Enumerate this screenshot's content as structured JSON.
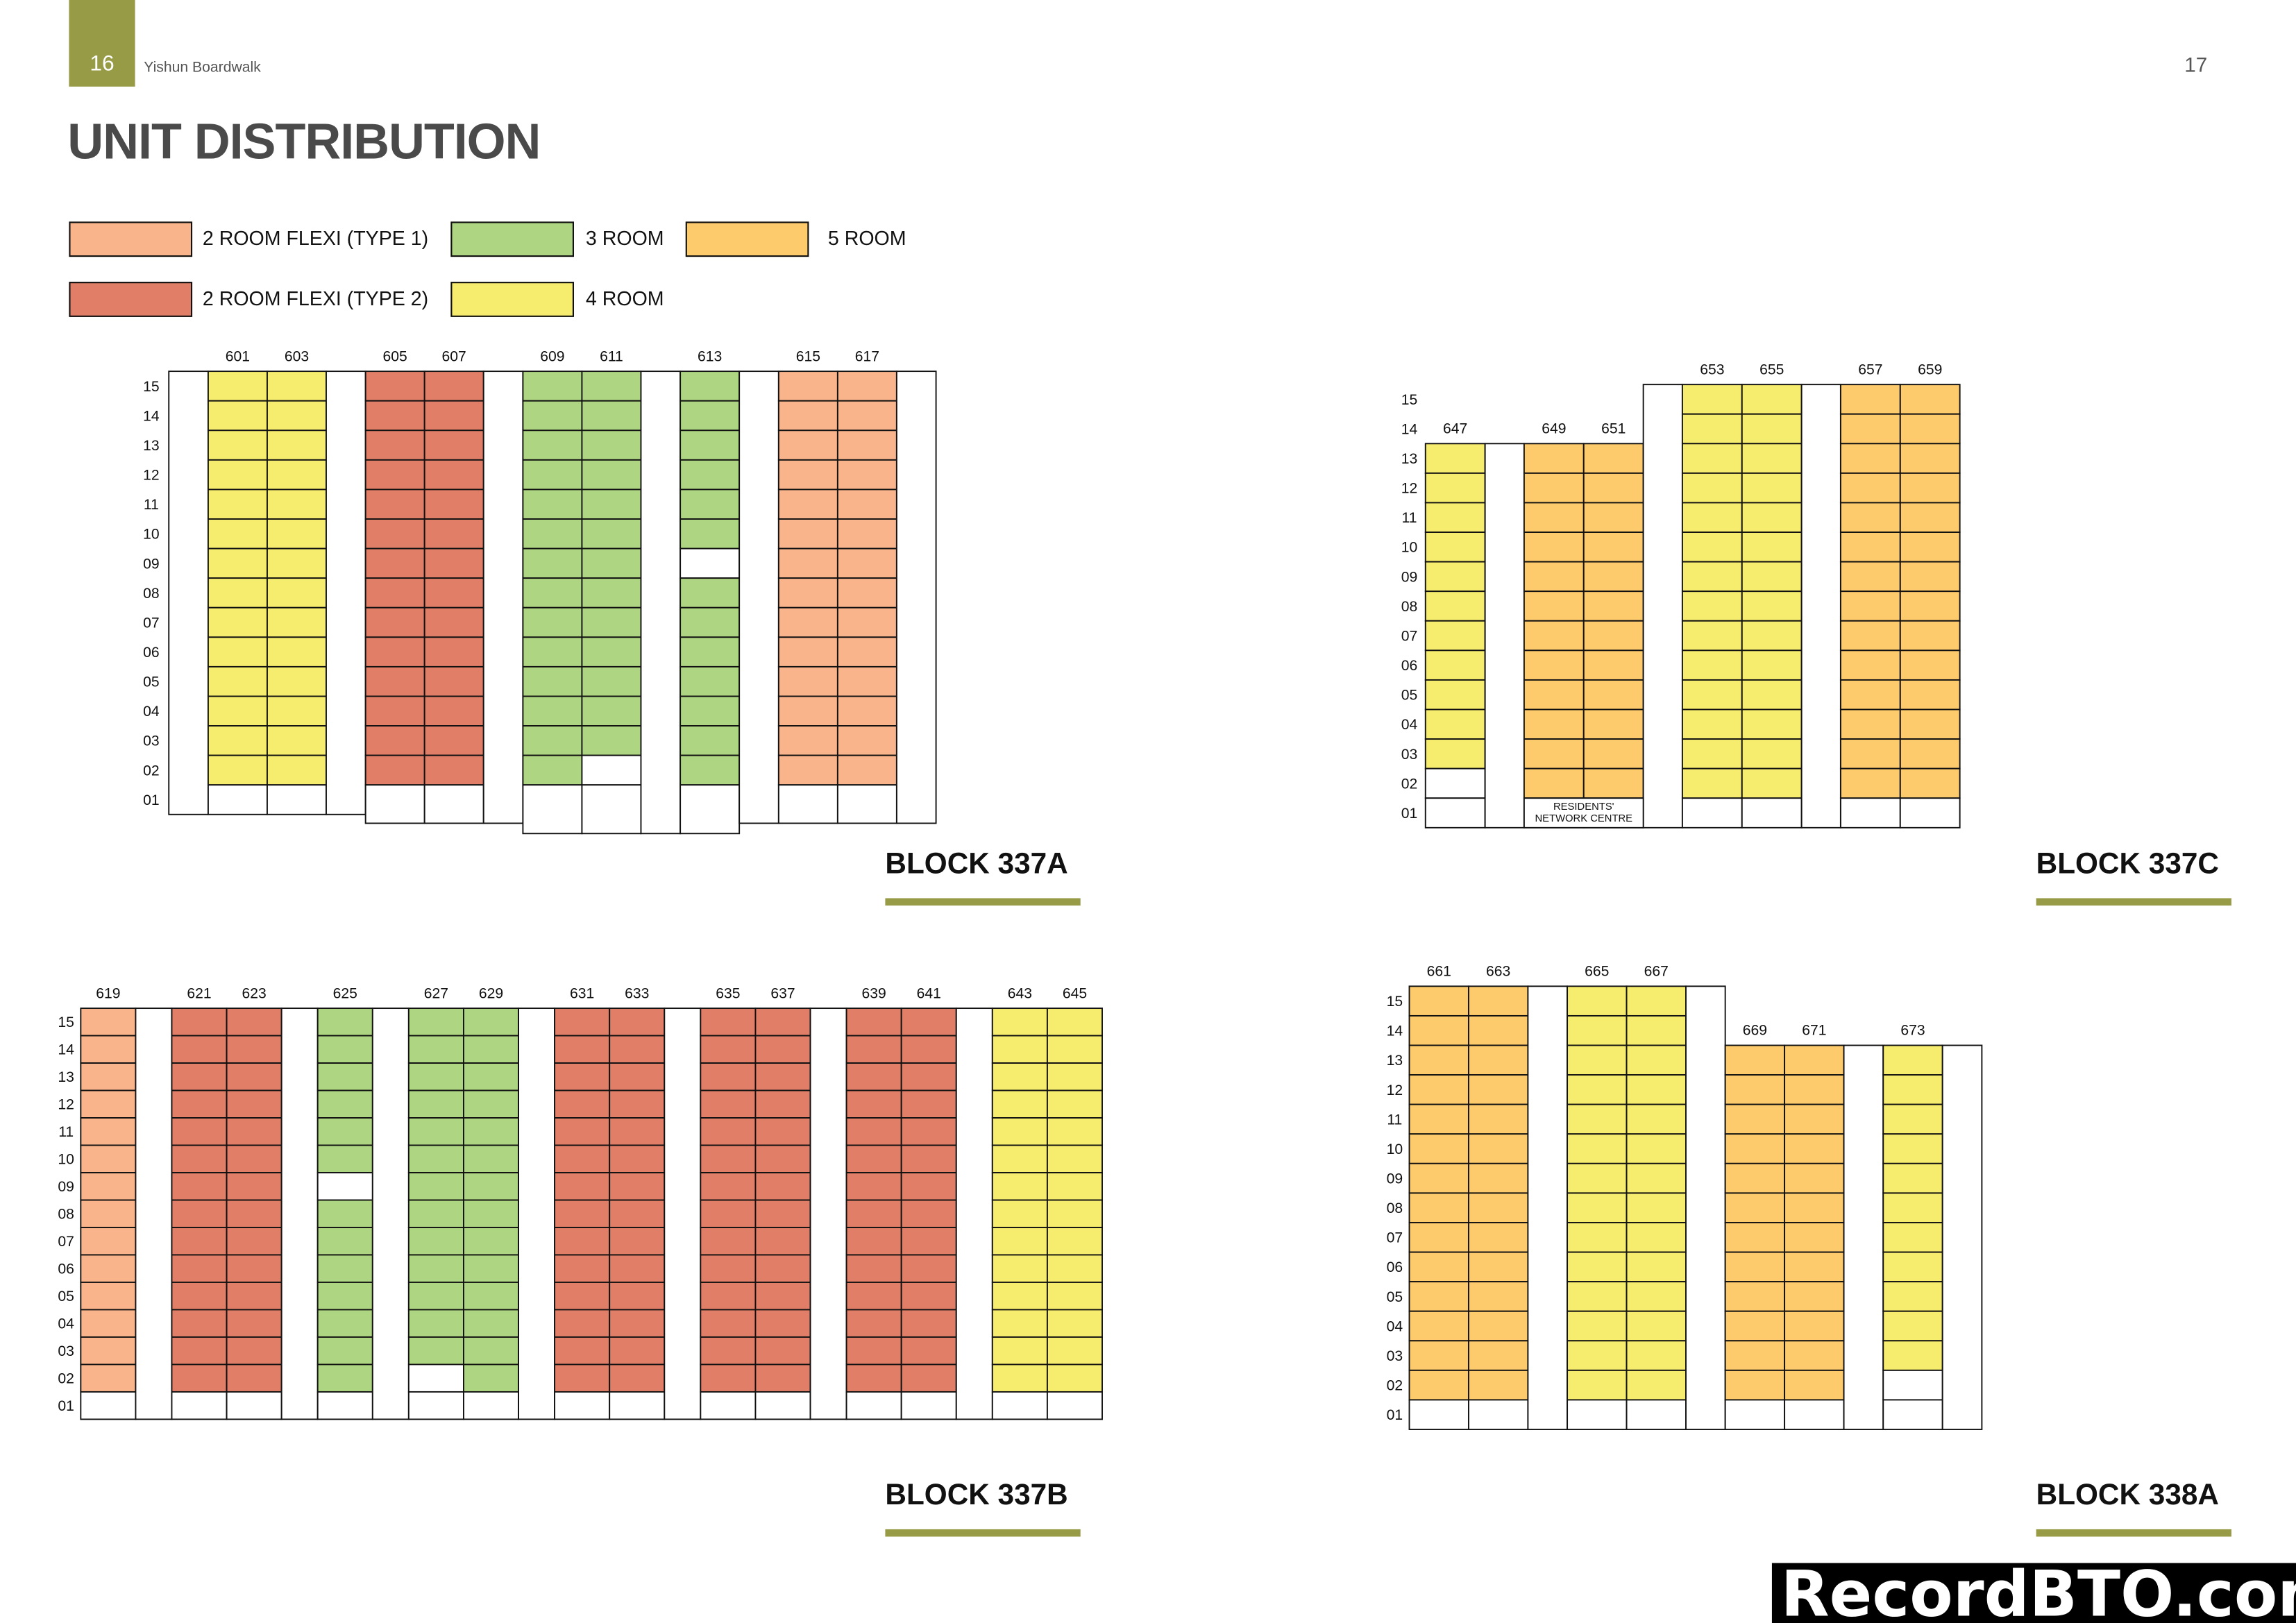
{
  "header": {
    "left_page_number": "16",
    "project_name": "Yishun Boardwalk",
    "right_page_number": "17",
    "title": "UNIT DISTRIBUTION",
    "accent_color": "#979b45"
  },
  "legend": [
    {
      "key": "flexi1",
      "label": "2 ROOM FLEXI (TYPE 1)",
      "color": "#f9b48c"
    },
    {
      "key": "room3",
      "label": "3 ROOM",
      "color": "#aed581"
    },
    {
      "key": "room5",
      "label": "5 ROOM",
      "color": "#fdca6c"
    },
    {
      "key": "flexi2",
      "label": "2 ROOM FLEXI (TYPE 2)",
      "color": "#e07e68"
    },
    {
      "key": "room4",
      "label": "4 ROOM",
      "color": "#f6ed6e"
    }
  ],
  "blank_color": "#ffffff",
  "floors": [
    "15",
    "14",
    "13",
    "12",
    "11",
    "10",
    "09",
    "08",
    "07",
    "06",
    "05",
    "04",
    "03",
    "02",
    "01"
  ],
  "blocks": [
    {
      "name": "BLOCK 337A",
      "columns": [
        {
          "unit": null,
          "type": "void",
          "top_floor": 15
        },
        {
          "unit": "601",
          "type": "room4",
          "top_floor": 15,
          "blank_floors": [
            "01"
          ]
        },
        {
          "unit": "603",
          "type": "room4",
          "top_floor": 15,
          "blank_floors": [
            "01"
          ]
        },
        {
          "unit": null,
          "type": "void",
          "top_floor": 15
        },
        {
          "unit": "605",
          "type": "flexi2",
          "top_floor": 15,
          "blank_floors": [
            "01"
          ]
        },
        {
          "unit": "607",
          "type": "flexi2",
          "top_floor": 15,
          "blank_floors": [
            "01"
          ]
        },
        {
          "unit": null,
          "type": "void",
          "top_floor": 15
        },
        {
          "unit": "609",
          "type": "room3",
          "top_floor": 15,
          "blank_floors": [
            "01"
          ]
        },
        {
          "unit": "611",
          "type": "room3",
          "top_floor": 15,
          "blank_floors": [
            "02",
            "01"
          ]
        },
        {
          "unit": null,
          "type": "void",
          "top_floor": 15
        },
        {
          "unit": "613",
          "type": "room3",
          "top_floor": 15,
          "blank_floors": [
            "09",
            "01"
          ]
        },
        {
          "unit": null,
          "type": "void",
          "top_floor": 15
        },
        {
          "unit": "615",
          "type": "flexi1",
          "top_floor": 15,
          "blank_floors": [
            "01"
          ]
        },
        {
          "unit": "617",
          "type": "flexi1",
          "top_floor": 15,
          "blank_floors": [
            "01"
          ]
        },
        {
          "unit": null,
          "type": "void",
          "top_floor": 15
        }
      ]
    },
    {
      "name": "BLOCK 337C",
      "columns": [
        {
          "unit": "647",
          "type": "room4",
          "top_floor": 13,
          "blank_floors": [
            "02",
            "01"
          ]
        },
        {
          "unit": null,
          "type": "void",
          "top_floor": 13
        },
        {
          "unit": "649",
          "type": "room5",
          "top_floor": 13,
          "blank_floors": [
            "01"
          ]
        },
        {
          "unit": "651",
          "type": "room5",
          "top_floor": 13,
          "blank_floors": [
            "01"
          ]
        },
        {
          "unit": null,
          "type": "void",
          "top_floor": 15
        },
        {
          "unit": "653",
          "type": "room4",
          "top_floor": 15,
          "blank_floors": [
            "01"
          ]
        },
        {
          "unit": "655",
          "type": "room4",
          "top_floor": 15,
          "blank_floors": [
            "01"
          ]
        },
        {
          "unit": null,
          "type": "void",
          "top_floor": 15
        },
        {
          "unit": "657",
          "type": "room5",
          "top_floor": 15,
          "blank_floors": [
            "01"
          ]
        },
        {
          "unit": "659",
          "type": "room5",
          "top_floor": 15,
          "blank_floors": [
            "01"
          ]
        }
      ],
      "merged_cells": [
        {
          "units": [
            "649",
            "651"
          ],
          "floor": "01",
          "label_lines": [
            "RESIDENTS'",
            "NETWORK CENTRE"
          ]
        }
      ]
    },
    {
      "name": "BLOCK 337B",
      "columns": [
        {
          "unit": "619",
          "type": "flexi1",
          "top_floor": 15,
          "blank_floors": [
            "01"
          ]
        },
        {
          "unit": null,
          "type": "void",
          "top_floor": 15
        },
        {
          "unit": "621",
          "type": "flexi2",
          "top_floor": 15,
          "blank_floors": [
            "01"
          ]
        },
        {
          "unit": "623",
          "type": "flexi2",
          "top_floor": 15,
          "blank_floors": [
            "01"
          ]
        },
        {
          "unit": null,
          "type": "void",
          "top_floor": 15
        },
        {
          "unit": "625",
          "type": "room3",
          "top_floor": 15,
          "blank_floors": [
            "09",
            "01"
          ]
        },
        {
          "unit": null,
          "type": "void",
          "top_floor": 15
        },
        {
          "unit": "627",
          "type": "room3",
          "top_floor": 15,
          "blank_floors": [
            "02",
            "01"
          ]
        },
        {
          "unit": "629",
          "type": "room3",
          "top_floor": 15,
          "blank_floors": [
            "01"
          ]
        },
        {
          "unit": null,
          "type": "void",
          "top_floor": 15
        },
        {
          "unit": "631",
          "type": "flexi2",
          "top_floor": 15,
          "blank_floors": [
            "01"
          ]
        },
        {
          "unit": "633",
          "type": "flexi2",
          "top_floor": 15,
          "blank_floors": [
            "01"
          ]
        },
        {
          "unit": null,
          "type": "void",
          "top_floor": 15
        },
        {
          "unit": "635",
          "type": "flexi2",
          "top_floor": 15,
          "blank_floors": [
            "01"
          ]
        },
        {
          "unit": "637",
          "type": "flexi2",
          "top_floor": 15,
          "blank_floors": [
            "01"
          ]
        },
        {
          "unit": null,
          "type": "void",
          "top_floor": 15
        },
        {
          "unit": "639",
          "type": "flexi2",
          "top_floor": 15,
          "blank_floors": [
            "01"
          ]
        },
        {
          "unit": "641",
          "type": "flexi2",
          "top_floor": 15,
          "blank_floors": [
            "01"
          ]
        },
        {
          "unit": null,
          "type": "void",
          "top_floor": 15
        },
        {
          "unit": "643",
          "type": "room4",
          "top_floor": 15,
          "blank_floors": [
            "01"
          ]
        },
        {
          "unit": "645",
          "type": "room4",
          "top_floor": 15,
          "blank_floors": [
            "01"
          ]
        }
      ]
    },
    {
      "name": "BLOCK 338A",
      "columns": [
        {
          "unit": "661",
          "type": "room5",
          "top_floor": 15,
          "blank_floors": [
            "01"
          ]
        },
        {
          "unit": "663",
          "type": "room5",
          "top_floor": 15,
          "blank_floors": [
            "01"
          ]
        },
        {
          "unit": null,
          "type": "void",
          "top_floor": 15
        },
        {
          "unit": "665",
          "type": "room4",
          "top_floor": 15,
          "blank_floors": [
            "01"
          ]
        },
        {
          "unit": "667",
          "type": "room4",
          "top_floor": 15,
          "blank_floors": [
            "01"
          ]
        },
        {
          "unit": null,
          "type": "void",
          "top_floor": 15
        },
        {
          "unit": "669",
          "type": "room5",
          "top_floor": 13,
          "blank_floors": [
            "01"
          ]
        },
        {
          "unit": "671",
          "type": "room5",
          "top_floor": 13,
          "blank_floors": [
            "01"
          ]
        },
        {
          "unit": null,
          "type": "void",
          "top_floor": 13
        },
        {
          "unit": "673",
          "type": "room4",
          "top_floor": 13,
          "blank_floors": [
            "02",
            "01"
          ]
        },
        {
          "unit": null,
          "type": "void",
          "top_floor": 13
        }
      ]
    }
  ],
  "watermark": "RecordBTO.com"
}
